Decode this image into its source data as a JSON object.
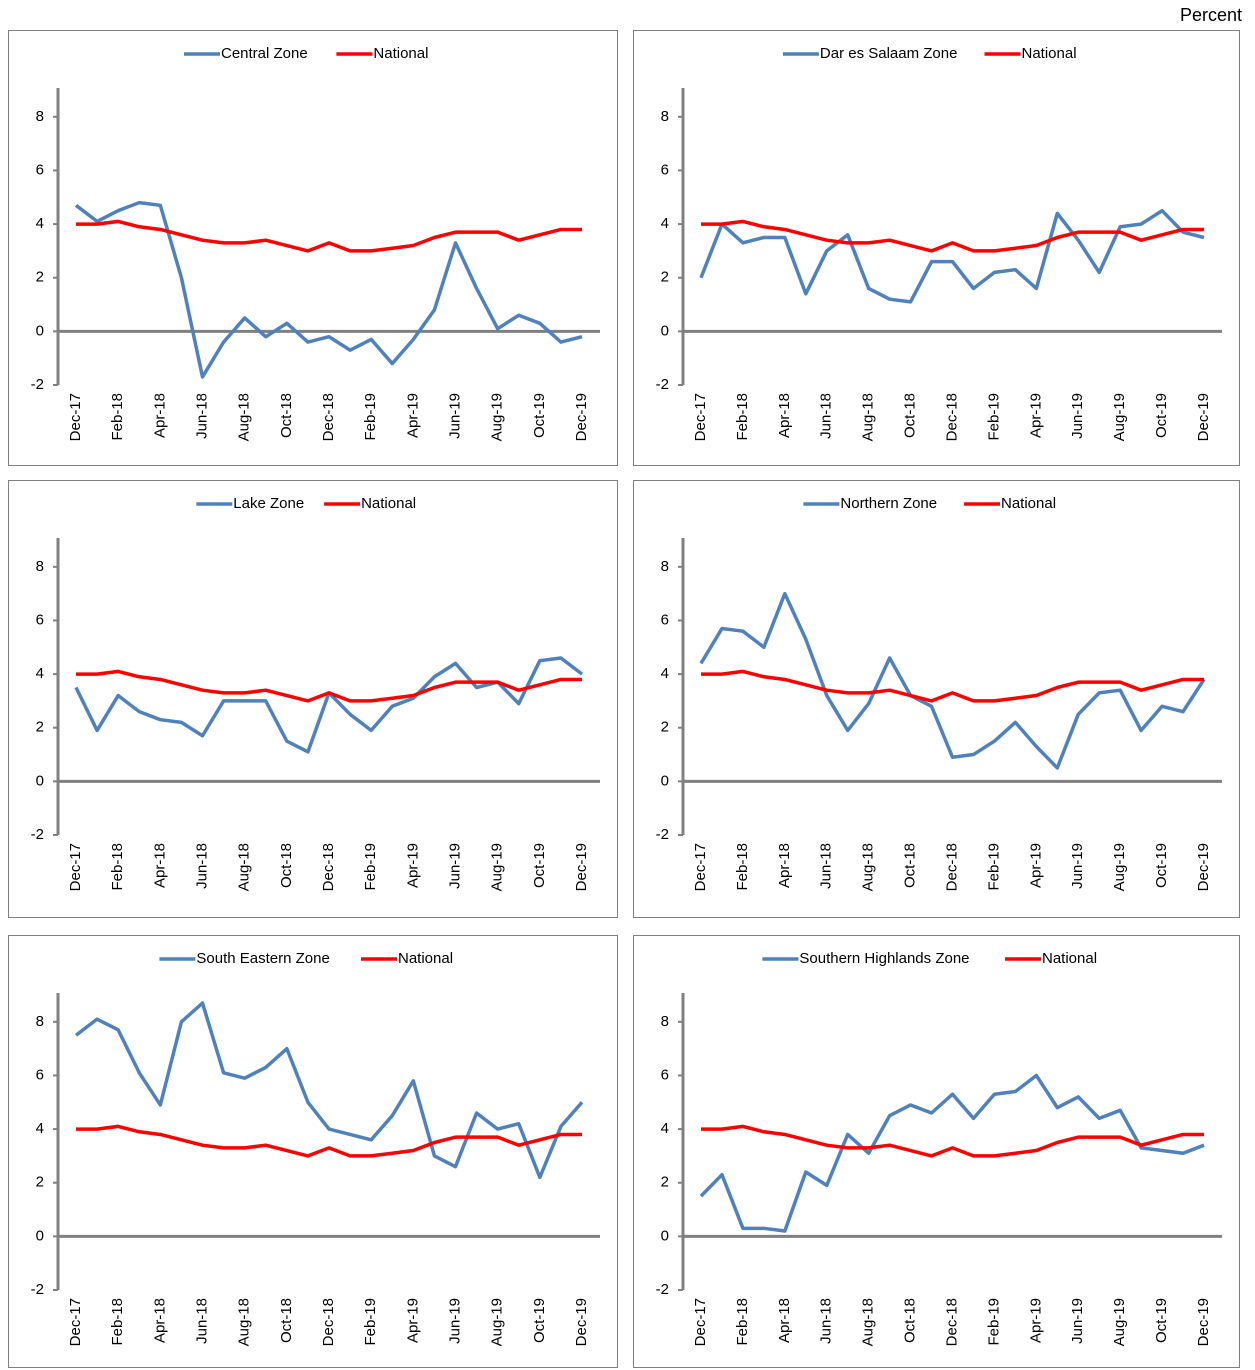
{
  "unit_label": "Percent",
  "chart_data": [
    {
      "type": "line",
      "categories": [
        "Dec-17",
        null,
        "Feb-18",
        null,
        "Apr-18",
        null,
        "Jun-18",
        null,
        "Aug-18",
        null,
        "Oct-18",
        null,
        "Dec-18",
        null,
        "Feb-19",
        null,
        "Apr-19",
        null,
        "Jun-19",
        null,
        "Aug-19",
        null,
        "Oct-19",
        null,
        "Dec-19"
      ],
      "series": [
        {
          "name": "Central Zone",
          "color": "#4f81bd",
          "values": [
            4.7,
            4.1,
            4.5,
            4.8,
            4.7,
            2.0,
            -1.7,
            -0.4,
            0.5,
            -0.2,
            0.3,
            -0.4,
            -0.2,
            -0.7,
            -0.3,
            -1.2,
            -0.3,
            0.8,
            3.3,
            1.6,
            0.1,
            0.6,
            0.3,
            -0.4,
            -0.2
          ]
        },
        {
          "name": "National",
          "color": "#ff0000",
          "values": [
            4.0,
            4.0,
            4.1,
            3.9,
            3.8,
            3.6,
            3.4,
            3.3,
            3.3,
            3.4,
            3.2,
            3.0,
            3.3,
            3.0,
            3.0,
            3.1,
            3.2,
            3.5,
            3.7,
            3.7,
            3.7,
            3.4,
            3.6,
            3.8,
            3.8
          ]
        }
      ],
      "ylim": [
        -2,
        9
      ],
      "yticks": [
        -2,
        0,
        2,
        4,
        6,
        8
      ],
      "grid": false
    },
    {
      "type": "line",
      "categories": [
        "Dec-17",
        null,
        "Feb-18",
        null,
        "Apr-18",
        null,
        "Jun-18",
        null,
        "Aug-18",
        null,
        "Oct-18",
        null,
        "Dec-18",
        null,
        "Feb-19",
        null,
        "Apr-19",
        null,
        "Jun-19",
        null,
        "Aug-19",
        null,
        "Oct-19",
        null,
        "Dec-19"
      ],
      "series": [
        {
          "name": "Dar es Salaam Zone",
          "color": "#4f81bd",
          "values": [
            2.0,
            4.0,
            3.3,
            3.5,
            3.5,
            1.4,
            3.0,
            3.6,
            1.6,
            1.2,
            1.1,
            2.6,
            2.6,
            1.6,
            2.2,
            2.3,
            1.6,
            4.4,
            3.4,
            2.2,
            3.9,
            4.0,
            4.5,
            3.7,
            3.5
          ]
        },
        {
          "name": "National",
          "color": "#ff0000",
          "values": [
            4.0,
            4.0,
            4.1,
            3.9,
            3.8,
            3.6,
            3.4,
            3.3,
            3.3,
            3.4,
            3.2,
            3.0,
            3.3,
            3.0,
            3.0,
            3.1,
            3.2,
            3.5,
            3.7,
            3.7,
            3.7,
            3.4,
            3.6,
            3.8,
            3.8
          ]
        }
      ],
      "ylim": [
        -2,
        9
      ],
      "yticks": [
        -2,
        0,
        2,
        4,
        6,
        8
      ],
      "grid": false
    },
    {
      "type": "line",
      "categories": [
        "Dec-17",
        null,
        "Feb-18",
        null,
        "Apr-18",
        null,
        "Jun-18",
        null,
        "Aug-18",
        null,
        "Oct-18",
        null,
        "Dec-18",
        null,
        "Feb-19",
        null,
        "Apr-19",
        null,
        "Jun-19",
        null,
        "Aug-19",
        null,
        "Oct-19",
        null,
        "Dec-19"
      ],
      "series": [
        {
          "name": "Lake Zone",
          "color": "#4f81bd",
          "values": [
            3.5,
            1.9,
            3.2,
            2.6,
            2.3,
            2.2,
            1.7,
            3.0,
            3.0,
            3.0,
            1.5,
            1.1,
            3.3,
            2.5,
            1.9,
            2.8,
            3.1,
            3.9,
            4.4,
            3.5,
            3.7,
            2.9,
            4.5,
            4.6,
            4.0
          ]
        },
        {
          "name": "National",
          "color": "#ff0000",
          "values": [
            4.0,
            4.0,
            4.1,
            3.9,
            3.8,
            3.6,
            3.4,
            3.3,
            3.3,
            3.4,
            3.2,
            3.0,
            3.3,
            3.0,
            3.0,
            3.1,
            3.2,
            3.5,
            3.7,
            3.7,
            3.7,
            3.4,
            3.6,
            3.8,
            3.8
          ]
        }
      ],
      "ylim": [
        -2,
        9
      ],
      "yticks": [
        -2,
        0,
        2,
        4,
        6,
        8
      ],
      "grid": false
    },
    {
      "type": "line",
      "categories": [
        "Dec-17",
        null,
        "Feb-18",
        null,
        "Apr-18",
        null,
        "Jun-18",
        null,
        "Aug-18",
        null,
        "Oct-18",
        null,
        "Dec-18",
        null,
        "Feb-19",
        null,
        "Apr-19",
        null,
        "Jun-19",
        null,
        "Aug-19",
        null,
        "Oct-19",
        null,
        "Dec-19"
      ],
      "series": [
        {
          "name": "Northern Zone",
          "color": "#4f81bd",
          "values": [
            4.4,
            5.7,
            5.6,
            5.0,
            7.0,
            5.3,
            3.2,
            1.9,
            2.9,
            4.6,
            3.2,
            2.8,
            0.9,
            1.0,
            1.5,
            2.2,
            1.3,
            0.5,
            2.5,
            3.3,
            3.4,
            1.9,
            2.8,
            2.6,
            3.8
          ]
        },
        {
          "name": "National",
          "color": "#ff0000",
          "values": [
            4.0,
            4.0,
            4.1,
            3.9,
            3.8,
            3.6,
            3.4,
            3.3,
            3.3,
            3.4,
            3.2,
            3.0,
            3.3,
            3.0,
            3.0,
            3.1,
            3.2,
            3.5,
            3.7,
            3.7,
            3.7,
            3.4,
            3.6,
            3.8,
            3.8
          ]
        }
      ],
      "ylim": [
        -2,
        9
      ],
      "yticks": [
        -2,
        0,
        2,
        4,
        6,
        8
      ],
      "grid": false
    },
    {
      "type": "line",
      "categories": [
        "Dec-17",
        null,
        "Feb-18",
        null,
        "Apr-18",
        null,
        "Jun-18",
        null,
        "Aug-18",
        null,
        "Oct-18",
        null,
        "Dec-18",
        null,
        "Feb-19",
        null,
        "Apr-19",
        null,
        "Jun-19",
        null,
        "Aug-19",
        null,
        "Oct-19",
        null,
        "Dec-19"
      ],
      "series": [
        {
          "name": "South Eastern Zone",
          "color": "#4f81bd",
          "values": [
            7.5,
            8.1,
            7.7,
            6.1,
            4.9,
            8.0,
            8.7,
            6.1,
            5.9,
            6.3,
            7.0,
            5.0,
            4.0,
            3.8,
            3.6,
            4.5,
            5.8,
            3.0,
            2.6,
            4.6,
            4.0,
            4.2,
            2.2,
            4.1,
            5.0
          ]
        },
        {
          "name": "National",
          "color": "#ff0000",
          "values": [
            4.0,
            4.0,
            4.1,
            3.9,
            3.8,
            3.6,
            3.4,
            3.3,
            3.3,
            3.4,
            3.2,
            3.0,
            3.3,
            3.0,
            3.0,
            3.1,
            3.2,
            3.5,
            3.7,
            3.7,
            3.7,
            3.4,
            3.6,
            3.8,
            3.8
          ]
        }
      ],
      "ylim": [
        -2,
        9
      ],
      "yticks": [
        -2,
        0,
        2,
        4,
        6,
        8
      ],
      "grid": false
    },
    {
      "type": "line",
      "categories": [
        "Dec-17",
        null,
        "Feb-18",
        null,
        "Apr-18",
        null,
        "Jun-18",
        null,
        "Aug-18",
        null,
        "Oct-18",
        null,
        "Dec-18",
        null,
        "Feb-19",
        null,
        "Apr-19",
        null,
        "Jun-19",
        null,
        "Aug-19",
        null,
        "Oct-19",
        null,
        "Dec-19"
      ],
      "series": [
        {
          "name": "Southern Highlands Zone",
          "color": "#4f81bd",
          "values": [
            1.5,
            2.3,
            0.3,
            0.3,
            0.2,
            2.4,
            1.9,
            3.8,
            3.1,
            4.5,
            4.9,
            4.6,
            5.3,
            4.4,
            5.3,
            5.4,
            6.0,
            4.8,
            5.2,
            4.4,
            4.7,
            3.3,
            3.2,
            3.1,
            3.4
          ]
        },
        {
          "name": "National",
          "color": "#ff0000",
          "values": [
            4.0,
            4.0,
            4.1,
            3.9,
            3.8,
            3.6,
            3.4,
            3.3,
            3.3,
            3.4,
            3.2,
            3.0,
            3.3,
            3.0,
            3.0,
            3.1,
            3.2,
            3.5,
            3.7,
            3.7,
            3.7,
            3.4,
            3.6,
            3.8,
            3.8
          ]
        }
      ],
      "ylim": [
        -2,
        9
      ],
      "yticks": [
        -2,
        0,
        2,
        4,
        6,
        8
      ],
      "grid": false
    }
  ]
}
